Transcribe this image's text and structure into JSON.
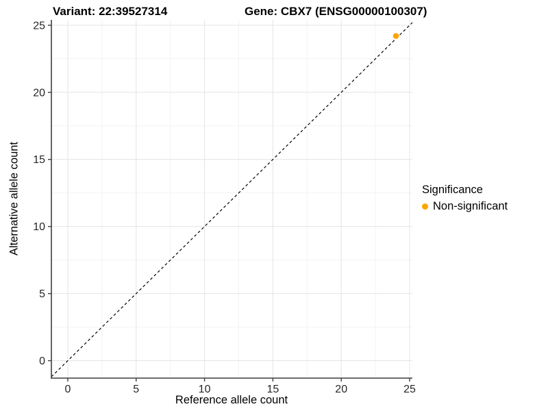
{
  "chart_data": {
    "type": "scatter",
    "title_left": "Variant: 22:39527314",
    "title_right": "Gene: CBX7 (ENSG00000100307)",
    "xlabel": "Reference allele count",
    "ylabel": "Alternative allele count",
    "x_ticks": [
      0,
      5,
      10,
      15,
      20,
      25
    ],
    "y_ticks": [
      0,
      5,
      10,
      15,
      20,
      25
    ],
    "x_minor_ticks": [
      2.5,
      7.5,
      12.5,
      17.5,
      22.5
    ],
    "y_minor_ticks": [
      2.5,
      7.5,
      12.5,
      17.5,
      22.5
    ],
    "xlim": [
      -1.2,
      25.2
    ],
    "ylim": [
      -1.3,
      25.4
    ],
    "grid": "major+minor",
    "identity_line": {
      "type": "y=x",
      "style": "dashed",
      "color": "#000000"
    },
    "points": [
      {
        "x": 24,
        "y": 24.2,
        "series": "Non-significant"
      }
    ],
    "legend": {
      "title": "Significance",
      "position": "right",
      "items": [
        {
          "label": "Non-significant",
          "color": "#FFA500"
        }
      ]
    },
    "colors": {
      "point": "#FFA500",
      "grid_major": "#E4E4E4",
      "grid_minor": "#F2F2F2",
      "axis_line": "#3D3D3D",
      "tick_text": "#262626"
    }
  }
}
